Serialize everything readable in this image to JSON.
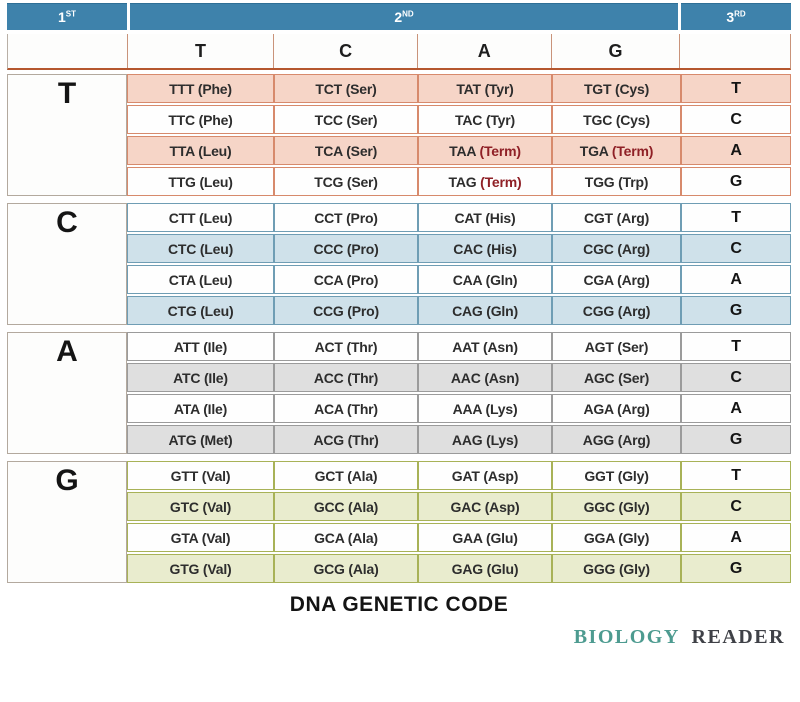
{
  "chart_data": {
    "type": "table",
    "title": "DNA GENETIC CODE",
    "column_headers": {
      "first": {
        "num": "1",
        "ord": "ST"
      },
      "second": {
        "num": "2",
        "ord": "ND"
      },
      "third": {
        "num": "3",
        "rd": "RD",
        "ord": "RD"
      },
      "second_letters": [
        "T",
        "C",
        "A",
        "G"
      ]
    },
    "groups": [
      {
        "first_letter": "T",
        "theme": "salmon",
        "rows": [
          {
            "third_letter": "T",
            "shaded": true,
            "cells": [
              {
                "codon": "TTT",
                "amino": "Phe"
              },
              {
                "codon": "TCT",
                "amino": "Ser"
              },
              {
                "codon": "TAT",
                "amino": "Tyr"
              },
              {
                "codon": "TGT",
                "amino": "Cys"
              }
            ]
          },
          {
            "third_letter": "C",
            "shaded": false,
            "cells": [
              {
                "codon": "TTC",
                "amino": "Phe"
              },
              {
                "codon": "TCC",
                "amino": "Ser"
              },
              {
                "codon": "TAC",
                "amino": "Tyr"
              },
              {
                "codon": "TGC",
                "amino": "Cys"
              }
            ]
          },
          {
            "third_letter": "A",
            "shaded": true,
            "cells": [
              {
                "codon": "TTA",
                "amino": "Leu"
              },
              {
                "codon": "TCA",
                "amino": "Ser"
              },
              {
                "codon": "TAA",
                "amino": "Term",
                "stop": true
              },
              {
                "codon": "TGA",
                "amino": "Term",
                "stop": true
              }
            ]
          },
          {
            "third_letter": "G",
            "shaded": false,
            "cells": [
              {
                "codon": "TTG",
                "amino": "Leu"
              },
              {
                "codon": "TCG",
                "amino": "Ser"
              },
              {
                "codon": "TAG",
                "amino": "Term",
                "stop": true
              },
              {
                "codon": "TGG",
                "amino": "Trp"
              }
            ]
          }
        ]
      },
      {
        "first_letter": "C",
        "theme": "blue",
        "rows": [
          {
            "third_letter": "T",
            "shaded": false,
            "cells": [
              {
                "codon": "CTT",
                "amino": "Leu"
              },
              {
                "codon": "CCT",
                "amino": "Pro"
              },
              {
                "codon": "CAT",
                "amino": "His"
              },
              {
                "codon": "CGT",
                "amino": "Arg"
              }
            ]
          },
          {
            "third_letter": "C",
            "shaded": true,
            "cells": [
              {
                "codon": "CTC",
                "amino": "Leu"
              },
              {
                "codon": "CCC",
                "amino": "Pro"
              },
              {
                "codon": "CAC",
                "amino": "His"
              },
              {
                "codon": "CGC",
                "amino": "Arg"
              }
            ]
          },
          {
            "third_letter": "A",
            "shaded": false,
            "cells": [
              {
                "codon": "CTA",
                "amino": "Leu"
              },
              {
                "codon": "CCA",
                "amino": "Pro"
              },
              {
                "codon": "CAA",
                "amino": "Gln"
              },
              {
                "codon": "CGA",
                "amino": "Arg"
              }
            ]
          },
          {
            "third_letter": "G",
            "shaded": true,
            "cells": [
              {
                "codon": "CTG",
                "amino": "Leu"
              },
              {
                "codon": "CCG",
                "amino": "Pro"
              },
              {
                "codon": "CAG",
                "amino": "Gln"
              },
              {
                "codon": "CGG",
                "amino": "Arg"
              }
            ]
          }
        ]
      },
      {
        "first_letter": "A",
        "theme": "gray",
        "rows": [
          {
            "third_letter": "T",
            "shaded": false,
            "cells": [
              {
                "codon": "ATT",
                "amino": "Ile"
              },
              {
                "codon": "ACT",
                "amino": "Thr"
              },
              {
                "codon": "AAT",
                "amino": "Asn"
              },
              {
                "codon": "AGT",
                "amino": "Ser"
              }
            ]
          },
          {
            "third_letter": "C",
            "shaded": true,
            "cells": [
              {
                "codon": "ATC",
                "amino": "Ile"
              },
              {
                "codon": "ACC",
                "amino": "Thr"
              },
              {
                "codon": "AAC",
                "amino": "Asn"
              },
              {
                "codon": "AGC",
                "amino": "Ser"
              }
            ]
          },
          {
            "third_letter": "A",
            "shaded": false,
            "cells": [
              {
                "codon": "ATA",
                "amino": "Ile"
              },
              {
                "codon": "ACA",
                "amino": "Thr"
              },
              {
                "codon": "AAA",
                "amino": "Lys"
              },
              {
                "codon": "AGA",
                "amino": "Arg"
              }
            ]
          },
          {
            "third_letter": "G",
            "shaded": true,
            "cells": [
              {
                "codon": "ATG",
                "amino": "Met"
              },
              {
                "codon": "ACG",
                "amino": "Thr"
              },
              {
                "codon": "AAG",
                "amino": "Lys"
              },
              {
                "codon": "AGG",
                "amino": "Arg"
              }
            ]
          }
        ]
      },
      {
        "first_letter": "G",
        "theme": "green",
        "rows": [
          {
            "third_letter": "T",
            "shaded": false,
            "cells": [
              {
                "codon": "GTT",
                "amino": "Val"
              },
              {
                "codon": "GCT",
                "amino": "Ala"
              },
              {
                "codon": "GAT",
                "amino": "Asp"
              },
              {
                "codon": "GGT",
                "amino": "Gly"
              }
            ]
          },
          {
            "third_letter": "C",
            "shaded": true,
            "cells": [
              {
                "codon": "GTC",
                "amino": "Val"
              },
              {
                "codon": "GCC",
                "amino": "Ala"
              },
              {
                "codon": "GAC",
                "amino": "Asp"
              },
              {
                "codon": "GGC",
                "amino": "Gly"
              }
            ]
          },
          {
            "third_letter": "A",
            "shaded": false,
            "cells": [
              {
                "codon": "GTA",
                "amino": "Val"
              },
              {
                "codon": "GCA",
                "amino": "Ala"
              },
              {
                "codon": "GAA",
                "amino": "Glu"
              },
              {
                "codon": "GGA",
                "amino": "Gly"
              }
            ]
          },
          {
            "third_letter": "G",
            "shaded": true,
            "cells": [
              {
                "codon": "GTG",
                "amino": "Val"
              },
              {
                "codon": "GCG",
                "amino": "Ala"
              },
              {
                "codon": "GAG",
                "amino": "Glu"
              },
              {
                "codon": "GGG",
                "amino": "Gly"
              }
            ]
          }
        ]
      }
    ]
  },
  "footer": {
    "title": "DNA GENETIC CODE",
    "brand_word1": "BIOLOGY",
    "brand_word2": "READER"
  },
  "colors": {
    "header_bg": "#3e82ab",
    "header_text": "#ffffff",
    "orange_rule": "#b5572f",
    "salmon_bg": "#f6d5c7",
    "salmon_border": "#d78a6c",
    "blue_bg": "#cfe1ea",
    "blue_border": "#6f9db4",
    "gray_bg": "#dfdfdf",
    "gray_border": "#9b9b9b",
    "green_bg": "#e9ecce",
    "green_border": "#a8b257",
    "stop_codon_text": "#8f2026",
    "brand_teal": "#4d9b90",
    "brand_dark": "#3f4147"
  }
}
